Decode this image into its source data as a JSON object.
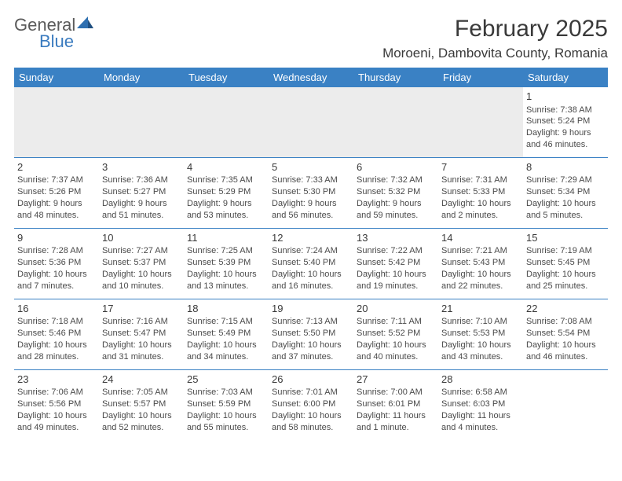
{
  "logo": {
    "general": "General",
    "blue": "Blue"
  },
  "header": {
    "month_title": "February 2025",
    "location": "Moroeni, Dambovita County, Romania"
  },
  "colors": {
    "header_bg": "#3a81c4",
    "header_text": "#ffffff",
    "blank_bg": "#ececec",
    "border": "#3a81c4",
    "body_text": "#4a4a4a",
    "daynum": "#3a3a3a"
  },
  "day_names": [
    "Sunday",
    "Monday",
    "Tuesday",
    "Wednesday",
    "Thursday",
    "Friday",
    "Saturday"
  ],
  "weeks": [
    [
      null,
      null,
      null,
      null,
      null,
      null,
      {
        "n": "1",
        "sr": "Sunrise: 7:38 AM",
        "ss": "Sunset: 5:24 PM",
        "d1": "Daylight: 9 hours",
        "d2": "and 46 minutes."
      }
    ],
    [
      {
        "n": "2",
        "sr": "Sunrise: 7:37 AM",
        "ss": "Sunset: 5:26 PM",
        "d1": "Daylight: 9 hours",
        "d2": "and 48 minutes."
      },
      {
        "n": "3",
        "sr": "Sunrise: 7:36 AM",
        "ss": "Sunset: 5:27 PM",
        "d1": "Daylight: 9 hours",
        "d2": "and 51 minutes."
      },
      {
        "n": "4",
        "sr": "Sunrise: 7:35 AM",
        "ss": "Sunset: 5:29 PM",
        "d1": "Daylight: 9 hours",
        "d2": "and 53 minutes."
      },
      {
        "n": "5",
        "sr": "Sunrise: 7:33 AM",
        "ss": "Sunset: 5:30 PM",
        "d1": "Daylight: 9 hours",
        "d2": "and 56 minutes."
      },
      {
        "n": "6",
        "sr": "Sunrise: 7:32 AM",
        "ss": "Sunset: 5:32 PM",
        "d1": "Daylight: 9 hours",
        "d2": "and 59 minutes."
      },
      {
        "n": "7",
        "sr": "Sunrise: 7:31 AM",
        "ss": "Sunset: 5:33 PM",
        "d1": "Daylight: 10 hours",
        "d2": "and 2 minutes."
      },
      {
        "n": "8",
        "sr": "Sunrise: 7:29 AM",
        "ss": "Sunset: 5:34 PM",
        "d1": "Daylight: 10 hours",
        "d2": "and 5 minutes."
      }
    ],
    [
      {
        "n": "9",
        "sr": "Sunrise: 7:28 AM",
        "ss": "Sunset: 5:36 PM",
        "d1": "Daylight: 10 hours",
        "d2": "and 7 minutes."
      },
      {
        "n": "10",
        "sr": "Sunrise: 7:27 AM",
        "ss": "Sunset: 5:37 PM",
        "d1": "Daylight: 10 hours",
        "d2": "and 10 minutes."
      },
      {
        "n": "11",
        "sr": "Sunrise: 7:25 AM",
        "ss": "Sunset: 5:39 PM",
        "d1": "Daylight: 10 hours",
        "d2": "and 13 minutes."
      },
      {
        "n": "12",
        "sr": "Sunrise: 7:24 AM",
        "ss": "Sunset: 5:40 PM",
        "d1": "Daylight: 10 hours",
        "d2": "and 16 minutes."
      },
      {
        "n": "13",
        "sr": "Sunrise: 7:22 AM",
        "ss": "Sunset: 5:42 PM",
        "d1": "Daylight: 10 hours",
        "d2": "and 19 minutes."
      },
      {
        "n": "14",
        "sr": "Sunrise: 7:21 AM",
        "ss": "Sunset: 5:43 PM",
        "d1": "Daylight: 10 hours",
        "d2": "and 22 minutes."
      },
      {
        "n": "15",
        "sr": "Sunrise: 7:19 AM",
        "ss": "Sunset: 5:45 PM",
        "d1": "Daylight: 10 hours",
        "d2": "and 25 minutes."
      }
    ],
    [
      {
        "n": "16",
        "sr": "Sunrise: 7:18 AM",
        "ss": "Sunset: 5:46 PM",
        "d1": "Daylight: 10 hours",
        "d2": "and 28 minutes."
      },
      {
        "n": "17",
        "sr": "Sunrise: 7:16 AM",
        "ss": "Sunset: 5:47 PM",
        "d1": "Daylight: 10 hours",
        "d2": "and 31 minutes."
      },
      {
        "n": "18",
        "sr": "Sunrise: 7:15 AM",
        "ss": "Sunset: 5:49 PM",
        "d1": "Daylight: 10 hours",
        "d2": "and 34 minutes."
      },
      {
        "n": "19",
        "sr": "Sunrise: 7:13 AM",
        "ss": "Sunset: 5:50 PM",
        "d1": "Daylight: 10 hours",
        "d2": "and 37 minutes."
      },
      {
        "n": "20",
        "sr": "Sunrise: 7:11 AM",
        "ss": "Sunset: 5:52 PM",
        "d1": "Daylight: 10 hours",
        "d2": "and 40 minutes."
      },
      {
        "n": "21",
        "sr": "Sunrise: 7:10 AM",
        "ss": "Sunset: 5:53 PM",
        "d1": "Daylight: 10 hours",
        "d2": "and 43 minutes."
      },
      {
        "n": "22",
        "sr": "Sunrise: 7:08 AM",
        "ss": "Sunset: 5:54 PM",
        "d1": "Daylight: 10 hours",
        "d2": "and 46 minutes."
      }
    ],
    [
      {
        "n": "23",
        "sr": "Sunrise: 7:06 AM",
        "ss": "Sunset: 5:56 PM",
        "d1": "Daylight: 10 hours",
        "d2": "and 49 minutes."
      },
      {
        "n": "24",
        "sr": "Sunrise: 7:05 AM",
        "ss": "Sunset: 5:57 PM",
        "d1": "Daylight: 10 hours",
        "d2": "and 52 minutes."
      },
      {
        "n": "25",
        "sr": "Sunrise: 7:03 AM",
        "ss": "Sunset: 5:59 PM",
        "d1": "Daylight: 10 hours",
        "d2": "and 55 minutes."
      },
      {
        "n": "26",
        "sr": "Sunrise: 7:01 AM",
        "ss": "Sunset: 6:00 PM",
        "d1": "Daylight: 10 hours",
        "d2": "and 58 minutes."
      },
      {
        "n": "27",
        "sr": "Sunrise: 7:00 AM",
        "ss": "Sunset: 6:01 PM",
        "d1": "Daylight: 11 hours",
        "d2": "and 1 minute."
      },
      {
        "n": "28",
        "sr": "Sunrise: 6:58 AM",
        "ss": "Sunset: 6:03 PM",
        "d1": "Daylight: 11 hours",
        "d2": "and 4 minutes."
      },
      null
    ]
  ]
}
